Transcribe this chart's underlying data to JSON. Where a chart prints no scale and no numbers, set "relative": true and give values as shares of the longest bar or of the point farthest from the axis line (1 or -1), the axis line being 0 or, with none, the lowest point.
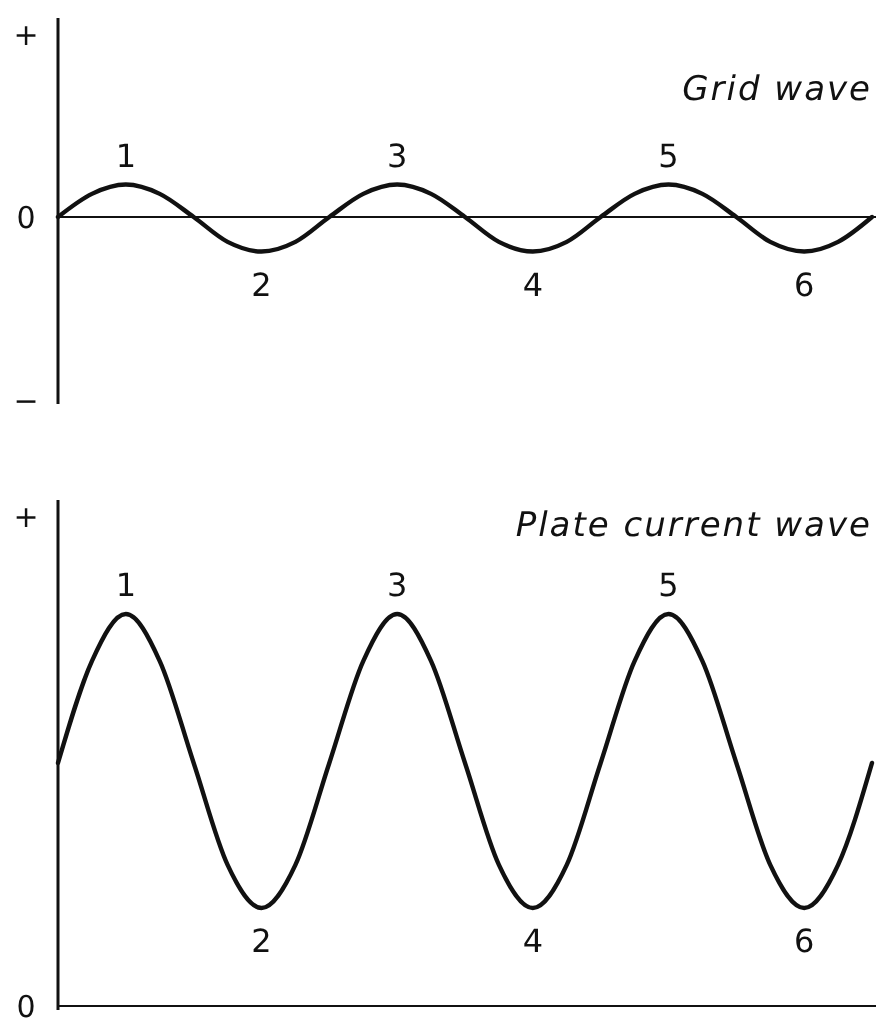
{
  "chart_data": [
    {
      "type": "line",
      "title": "Grid wave",
      "relative": true,
      "categories": [
        null,
        null,
        null,
        null,
        null,
        null,
        null,
        null,
        null,
        null,
        null,
        null,
        null,
        null,
        null,
        null,
        null,
        null,
        null,
        null,
        null,
        null,
        null,
        null,
        null
      ],
      "marker": "none",
      "line_style": "solid",
      "annotations": [
        "+",
        "0",
        "−",
        "1",
        "2",
        "3",
        "4",
        "5",
        "6"
      ],
      "series": [
        {
          "color": "#111111",
          "values": [
            0,
            0.67,
            0.94,
            0.67,
            0,
            -0.72,
            -1,
            -0.72,
            0,
            0.67,
            0.94,
            0.67,
            0,
            -0.72,
            -1,
            -0.72,
            0,
            0.67,
            0.94,
            0.67,
            0,
            -0.72,
            -1,
            -0.72,
            0
          ]
        }
      ]
    },
    {
      "type": "line",
      "title": "Plate current wave",
      "relative": true,
      "categories": [
        null,
        null,
        null,
        null,
        null,
        null,
        null,
        null,
        null,
        null,
        null,
        null,
        null,
        null,
        null,
        null,
        null,
        null,
        null,
        null,
        null,
        null,
        null,
        null,
        null
      ],
      "marker": "none",
      "line_style": "solid",
      "annotations": [
        "+",
        "0",
        "1",
        "2",
        "3",
        "4",
        "5",
        "6"
      ],
      "series": [
        {
          "color": "#111111",
          "values": [
            0.62,
            0.88,
            1,
            0.88,
            0.62,
            0.36,
            0.25,
            0.36,
            0.62,
            0.88,
            1,
            0.88,
            0.62,
            0.36,
            0.25,
            0.36,
            0.62,
            0.88,
            1,
            0.88,
            0.62,
            0.36,
            0.25,
            0.36,
            0.62
          ]
        }
      ]
    }
  ]
}
